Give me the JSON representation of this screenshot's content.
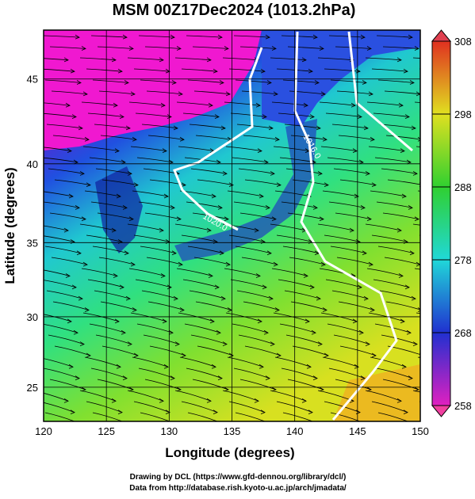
{
  "title": "MSM 00Z17Dec2024 (1013.2hPa)",
  "x_axis": {
    "label": "Longitude (degrees)",
    "range": [
      120,
      150
    ],
    "ticks": [
      120,
      125,
      130,
      135,
      140,
      145,
      150
    ]
  },
  "y_axis": {
    "label": "Latitude  (degrees)",
    "range": [
      22.5,
      47.7
    ],
    "ticks": [
      25,
      30,
      35,
      40,
      45
    ]
  },
  "colorbar": {
    "range": [
      258,
      308
    ],
    "ticks": [
      258,
      268,
      278,
      288,
      298,
      308
    ]
  },
  "contour_labels": [
    "1016.0",
    "1020.0"
  ],
  "credits": [
    "Drawing by DCL (https://www.gfd-dennou.org/library/dcl/)",
    "Data from http://database.rish.kyoto-u.ac.jp/arch/jmadata/"
  ]
}
